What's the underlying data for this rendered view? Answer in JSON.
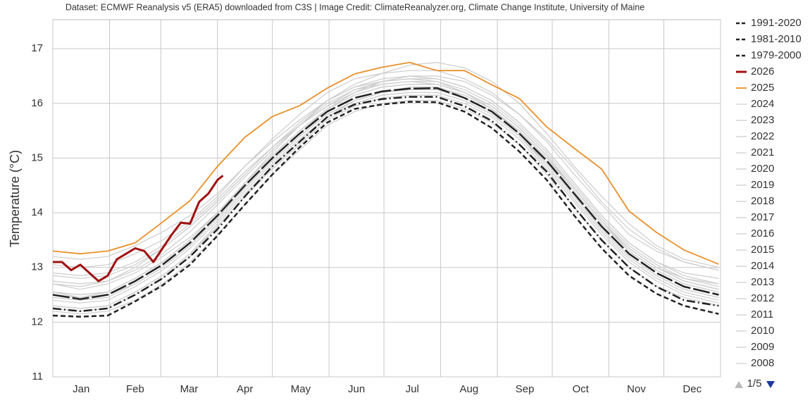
{
  "chart_data": {
    "type": "line",
    "credit": "Dataset: ECMWF Reanalysis v5 (ERA5) downloaded from C3S | Image Credit: ClimateReanalyzer.org, Climate Change Institute, University of Maine",
    "y_label": "Temperature (°C)",
    "legend_page": "1/5",
    "grid": true,
    "legend_position": "right",
    "xlim": [
      0,
      365
    ],
    "xticks": [
      0,
      31,
      59,
      90,
      120,
      151,
      181,
      212,
      243,
      273,
      304,
      334,
      365
    ],
    "months": [
      "Jan",
      "Feb",
      "Mar",
      "Apr",
      "May",
      "Jun",
      "Jul",
      "Aug",
      "Sep",
      "Oct",
      "Nov",
      "Dec"
    ],
    "ylim": [
      11,
      17.53
    ],
    "yticks": [
      11,
      12,
      13,
      14,
      15,
      16,
      17
    ],
    "x": [
      0,
      15,
      30,
      45,
      60,
      75,
      90,
      105,
      120,
      135,
      150,
      165,
      180,
      195,
      210,
      225,
      240,
      255,
      270,
      285,
      300,
      315,
      330,
      345,
      364
    ],
    "series": [
      {
        "name": "1991-2020",
        "color": "#222222",
        "dash": "long",
        "width": 2.5,
        "values": [
          12.5,
          12.42,
          12.5,
          12.75,
          13.05,
          13.45,
          13.95,
          14.5,
          15.0,
          15.45,
          15.85,
          16.1,
          16.22,
          16.27,
          16.28,
          16.1,
          15.85,
          15.45,
          14.95,
          14.35,
          13.75,
          13.25,
          12.9,
          12.65,
          12.5
        ]
      },
      {
        "name": "1981-2010",
        "color": "#222222",
        "dash": "dashdot",
        "width": 2.5,
        "values": [
          12.25,
          12.2,
          12.25,
          12.5,
          12.8,
          13.2,
          13.7,
          14.3,
          14.85,
          15.3,
          15.75,
          15.98,
          16.08,
          16.12,
          16.12,
          15.95,
          15.68,
          15.25,
          14.75,
          14.1,
          13.5,
          13.0,
          12.65,
          12.4,
          12.3
        ]
      },
      {
        "name": "1979-2000",
        "color": "#222222",
        "dash": "dash",
        "width": 2.5,
        "values": [
          12.12,
          12.1,
          12.12,
          12.38,
          12.67,
          13.05,
          13.58,
          14.15,
          14.7,
          15.2,
          15.65,
          15.9,
          15.98,
          16.03,
          16.02,
          15.85,
          15.55,
          15.12,
          14.6,
          13.95,
          13.35,
          12.85,
          12.52,
          12.3,
          12.15
        ]
      },
      {
        "name": "2026",
        "color": "#a01010",
        "dash": "solid",
        "width": 3,
        "x": [
          0,
          5,
          10,
          15,
          20,
          25,
          30,
          35,
          40,
          45,
          50,
          55,
          60,
          65,
          70,
          75,
          80,
          85,
          90,
          93
        ],
        "values": [
          13.1,
          13.1,
          12.95,
          13.05,
          12.9,
          12.75,
          12.85,
          13.15,
          13.25,
          13.35,
          13.3,
          13.1,
          13.35,
          13.6,
          13.82,
          13.8,
          14.2,
          14.35,
          14.6,
          14.68
        ]
      },
      {
        "name": "2025",
        "color": "#e8902a",
        "dash": "solid",
        "width": 1.8,
        "values": [
          13.3,
          13.25,
          13.3,
          13.45,
          13.83,
          14.22,
          14.85,
          15.38,
          15.76,
          15.96,
          16.28,
          16.54,
          16.66,
          16.75,
          16.6,
          16.6,
          16.34,
          16.09,
          15.57,
          15.18,
          14.8,
          14.03,
          13.64,
          13.32,
          13.06
        ]
      },
      {
        "name": "2024",
        "color": "#cccccc",
        "dash": "solid",
        "width": 1.2,
        "values": [
          13.05,
          13.0,
          13.05,
          13.25,
          13.5,
          13.85,
          14.3,
          14.85,
          15.35,
          15.8,
          16.2,
          16.45,
          16.55,
          16.6,
          16.6,
          16.45,
          16.2,
          15.8,
          15.3,
          14.7,
          14.15,
          13.6,
          13.3,
          13.1,
          12.95
        ]
      },
      {
        "name": "2023",
        "color": "#cccccc",
        "dash": "solid",
        "width": 1.2,
        "values": [
          12.7,
          12.6,
          12.7,
          12.9,
          13.2,
          13.55,
          14.0,
          14.55,
          15.1,
          15.6,
          16.05,
          16.35,
          16.55,
          16.7,
          16.75,
          16.65,
          16.4,
          16.0,
          15.45,
          14.85,
          14.3,
          13.8,
          13.4,
          13.15,
          13.0
        ]
      },
      {
        "name": "2022",
        "color": "#cccccc",
        "dash": "solid",
        "width": 1.2,
        "values": [
          12.55,
          12.45,
          12.55,
          12.8,
          13.1,
          13.5,
          14.0,
          14.55,
          15.05,
          15.5,
          15.9,
          16.15,
          16.3,
          16.35,
          16.35,
          16.2,
          15.95,
          15.55,
          15.05,
          14.45,
          13.85,
          13.35,
          13.0,
          12.75,
          12.6
        ]
      },
      {
        "name": "2021",
        "color": "#cccccc",
        "dash": "solid",
        "width": 1.2,
        "values": [
          12.45,
          12.4,
          12.45,
          12.7,
          13.0,
          13.4,
          13.9,
          14.45,
          14.95,
          15.4,
          15.8,
          16.05,
          16.2,
          16.25,
          16.25,
          16.1,
          15.85,
          15.5,
          15.0,
          14.45,
          13.85,
          13.3,
          12.95,
          12.7,
          12.55
        ]
      },
      {
        "name": "2020",
        "color": "#cccccc",
        "dash": "solid",
        "width": 1.2,
        "values": [
          12.9,
          12.85,
          12.9,
          13.1,
          13.4,
          13.8,
          14.25,
          14.75,
          15.2,
          15.6,
          15.95,
          16.2,
          16.35,
          16.4,
          16.35,
          16.2,
          15.95,
          15.55,
          15.05,
          14.45,
          13.85,
          13.35,
          13.0,
          12.75,
          12.6
        ]
      },
      {
        "name": "2019",
        "color": "#cccccc",
        "dash": "solid",
        "width": 1.2,
        "values": [
          12.75,
          12.7,
          12.75,
          12.95,
          13.25,
          13.65,
          14.15,
          14.65,
          15.15,
          15.6,
          15.95,
          16.25,
          16.4,
          16.45,
          16.45,
          16.3,
          16.05,
          15.65,
          15.15,
          14.55,
          13.95,
          13.45,
          13.1,
          12.85,
          12.7
        ]
      },
      {
        "name": "2018",
        "color": "#cccccc",
        "dash": "solid",
        "width": 1.2,
        "values": [
          12.55,
          12.5,
          12.55,
          12.8,
          13.1,
          13.5,
          14.0,
          14.55,
          15.05,
          15.5,
          15.9,
          16.15,
          16.3,
          16.35,
          16.35,
          16.2,
          15.95,
          15.55,
          15.05,
          14.45,
          13.85,
          13.35,
          13.0,
          12.8,
          12.65
        ]
      },
      {
        "name": "2017",
        "color": "#cccccc",
        "dash": "solid",
        "width": 1.2,
        "values": [
          12.85,
          12.8,
          12.85,
          13.05,
          13.35,
          13.75,
          14.2,
          14.7,
          15.2,
          15.6,
          16.0,
          16.25,
          16.35,
          16.4,
          16.4,
          16.25,
          16.0,
          15.6,
          15.1,
          14.5,
          13.9,
          13.4,
          13.05,
          12.8,
          12.7
        ]
      },
      {
        "name": "2016",
        "color": "#cccccc",
        "dash": "solid",
        "width": 1.2,
        "values": [
          13.2,
          13.15,
          13.2,
          13.4,
          13.65,
          13.95,
          14.35,
          14.85,
          15.3,
          15.7,
          16.05,
          16.3,
          16.45,
          16.5,
          16.45,
          16.3,
          16.05,
          15.65,
          15.15,
          14.55,
          13.95,
          13.45,
          13.1,
          12.9,
          12.8
        ]
      },
      {
        "name": "2015",
        "color": "#cccccc",
        "dash": "solid",
        "width": 1.2,
        "values": [
          12.55,
          12.5,
          12.55,
          12.8,
          13.1,
          13.5,
          14.0,
          14.5,
          15.0,
          15.45,
          15.9,
          16.2,
          16.4,
          16.5,
          16.5,
          16.4,
          16.15,
          15.8,
          15.35,
          14.8,
          14.2,
          13.7,
          13.35,
          13.1,
          12.95
        ]
      },
      {
        "name": "2014",
        "color": "#cccccc",
        "dash": "solid",
        "width": 1.2,
        "values": [
          12.5,
          12.45,
          12.5,
          12.7,
          13.0,
          13.4,
          13.9,
          14.45,
          14.95,
          15.4,
          15.8,
          16.05,
          16.2,
          16.25,
          16.25,
          16.15,
          15.9,
          15.5,
          15.0,
          14.45,
          13.85,
          13.35,
          13.0,
          12.75,
          12.6
        ]
      },
      {
        "name": "2013",
        "color": "#cccccc",
        "dash": "solid",
        "width": 1.2,
        "values": [
          12.4,
          12.35,
          12.4,
          12.65,
          12.95,
          13.35,
          13.85,
          14.4,
          14.9,
          15.35,
          15.75,
          16.0,
          16.15,
          16.2,
          16.2,
          16.05,
          15.8,
          15.4,
          14.9,
          14.3,
          13.7,
          13.2,
          12.85,
          12.6,
          12.45
        ]
      },
      {
        "name": "2012",
        "color": "#cccccc",
        "dash": "solid",
        "width": 1.2,
        "values": [
          12.25,
          12.2,
          12.25,
          12.5,
          12.8,
          13.2,
          13.75,
          14.3,
          14.85,
          15.3,
          15.75,
          16.0,
          16.15,
          16.2,
          16.2,
          16.05,
          15.8,
          15.4,
          14.85,
          14.25,
          13.65,
          13.15,
          12.8,
          12.55,
          12.4
        ]
      },
      {
        "name": "2011",
        "color": "#cccccc",
        "dash": "solid",
        "width": 1.2,
        "values": [
          12.3,
          12.25,
          12.3,
          12.55,
          12.85,
          13.25,
          13.75,
          14.3,
          14.8,
          15.25,
          15.7,
          15.95,
          16.1,
          16.15,
          16.15,
          16.0,
          15.75,
          15.35,
          14.8,
          14.2,
          13.6,
          13.1,
          12.75,
          12.5,
          12.35
        ]
      },
      {
        "name": "2010",
        "color": "#cccccc",
        "dash": "solid",
        "width": 1.2,
        "values": [
          12.7,
          12.65,
          12.75,
          13.0,
          13.35,
          13.75,
          14.2,
          14.7,
          15.2,
          15.65,
          16.05,
          16.3,
          16.4,
          16.45,
          16.4,
          16.2,
          15.9,
          15.45,
          14.9,
          14.3,
          13.7,
          13.2,
          12.85,
          12.6,
          12.45
        ]
      },
      {
        "name": "2009",
        "color": "#cccccc",
        "dash": "solid",
        "width": 1.2,
        "values": [
          12.3,
          12.25,
          12.3,
          12.55,
          12.85,
          13.25,
          13.8,
          14.35,
          14.85,
          15.3,
          15.75,
          16.05,
          16.2,
          16.3,
          16.3,
          16.15,
          15.9,
          15.5,
          15.0,
          14.4,
          13.8,
          13.3,
          12.95,
          12.7,
          12.55
        ]
      },
      {
        "name": "2008",
        "color": "#cccccc",
        "dash": "solid",
        "width": 1.2,
        "values": [
          12.2,
          12.15,
          12.2,
          12.4,
          12.7,
          13.1,
          13.6,
          14.15,
          14.7,
          15.15,
          15.6,
          15.85,
          16.0,
          16.05,
          16.05,
          15.9,
          15.65,
          15.25,
          14.7,
          14.1,
          13.5,
          13.0,
          12.65,
          12.45,
          12.3
        ]
      }
    ]
  }
}
